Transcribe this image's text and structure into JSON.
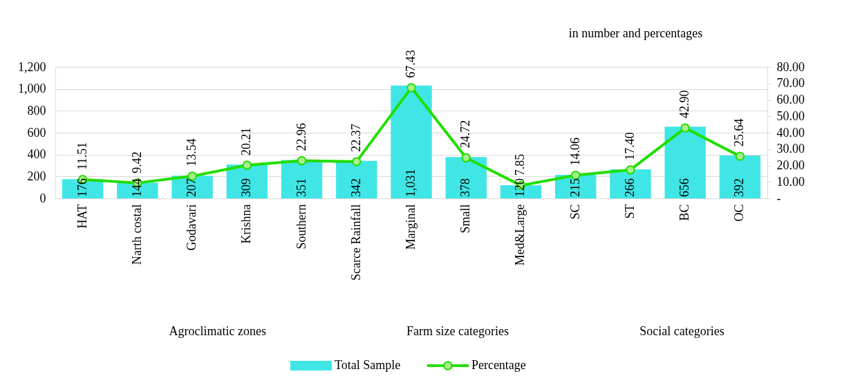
{
  "chart_data": {
    "type": "bar",
    "categories": [
      "HAT",
      "Narth costal",
      "Godavari",
      "Krishna",
      "Southern",
      "Scarce Rainfall",
      "Marginal",
      "Small",
      "Med&Large",
      "SC",
      "ST",
      "BC",
      "OC"
    ],
    "series": [
      {
        "name": "Total Sample",
        "color": "#40e6e6",
        "values": [
          176,
          144,
          207,
          309,
          351,
          342,
          1031,
          378,
          120,
          215,
          266,
          656,
          392
        ],
        "value_labels": [
          "176",
          "144",
          "207",
          "309",
          "351",
          "342",
          "1,031",
          "378",
          "120",
          "215",
          "266",
          "656",
          "392"
        ]
      },
      {
        "name": "Percentage",
        "type": "line",
        "axis": "y2",
        "color": "#22dd00",
        "marker": "circle",
        "line_style": "solid",
        "values": [
          11.51,
          9.42,
          13.54,
          20.21,
          22.96,
          22.37,
          67.43,
          24.72,
          7.85,
          14.06,
          17.4,
          42.9,
          25.64
        ],
        "value_labels": [
          "11.51",
          "9.42",
          "13.54",
          "20.21",
          "22.96",
          "22.37",
          "67.43",
          "24.72",
          "7.85",
          "14.06",
          "17.40",
          "42.90",
          "25.64"
        ]
      }
    ],
    "ylim": [
      0,
      1200
    ],
    "yticks": [
      0,
      200,
      400,
      600,
      800,
      {
        "value": 1000,
        "label": "1,000"
      },
      {
        "value": 1200,
        "label": "1,200"
      }
    ],
    "y2lim": [
      0,
      80
    ],
    "y2ticks": [
      {
        "value": 0,
        "label": "-"
      },
      {
        "value": 10,
        "label": "10.00"
      },
      {
        "value": 20,
        "label": "20.00"
      },
      {
        "value": 30,
        "label": "30.00"
      },
      {
        "value": 40,
        "label": "40.00"
      },
      {
        "value": 50,
        "label": "50.00"
      },
      {
        "value": 60,
        "label": "60.00"
      },
      {
        "value": 70,
        "label": "70.00"
      },
      {
        "value": 80,
        "label": "80.00"
      }
    ],
    "annotations": [
      "in number and percentages",
      "Agroclimatic zones",
      "Farm size categories",
      "Social categories"
    ],
    "grid": "y",
    "legend": "bottom"
  }
}
